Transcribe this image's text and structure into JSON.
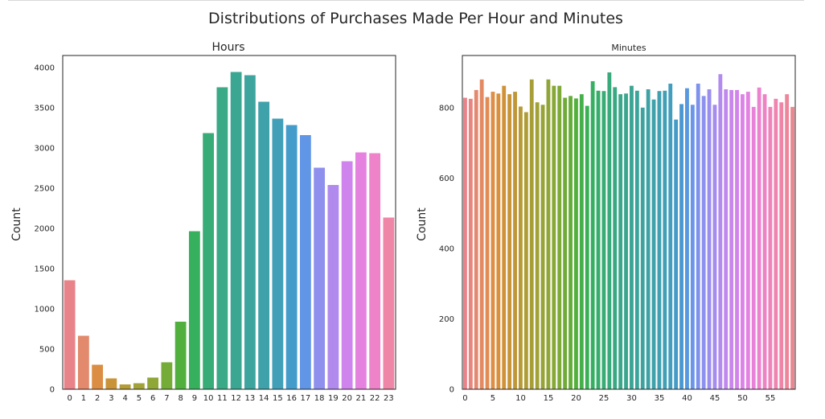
{
  "figure": {
    "suptitle": "Distributions of Purchases Made Per Hour and Minutes"
  },
  "chart_data": [
    {
      "type": "bar",
      "title": "Hours",
      "xlabel": "",
      "ylabel": "Count",
      "ylim": [
        0,
        4150
      ],
      "yticks": [
        0,
        500,
        1000,
        1500,
        2000,
        2500,
        3000,
        3500,
        4000
      ],
      "grid": false,
      "categories": [
        "0",
        "1",
        "2",
        "3",
        "4",
        "5",
        "6",
        "7",
        "8",
        "9",
        "10",
        "11",
        "12",
        "13",
        "14",
        "15",
        "16",
        "17",
        "18",
        "19",
        "20",
        "21",
        "22",
        "23"
      ],
      "tick_labels": [
        "0",
        "1",
        "2",
        "3",
        "4",
        "5",
        "6",
        "7",
        "8",
        "9",
        "10",
        "11",
        "12",
        "13",
        "14",
        "15",
        "16",
        "17",
        "18",
        "19",
        "20",
        "21",
        "22",
        "23"
      ],
      "values": [
        1355,
        665,
        305,
        135,
        60,
        75,
        145,
        335,
        840,
        1965,
        3185,
        3755,
        3945,
        3905,
        3575,
        3365,
        3285,
        3160,
        2755,
        2540,
        2835,
        2945,
        2935,
        2135
      ],
      "colors": [
        "#e8838a",
        "#e28a6b",
        "#dc8d44",
        "#c99438",
        "#b49c37",
        "#a1a237",
        "#8ea737",
        "#74ac37",
        "#51b03d",
        "#36b05d",
        "#38ac76",
        "#3aa986",
        "#3ba692",
        "#3ea49e",
        "#3fa2aa",
        "#41a0b8",
        "#449ccb",
        "#6196e6",
        "#8f90ee",
        "#b18aee",
        "#ce84ec",
        "#e582df",
        "#ef83c9",
        "#ef86a8"
      ]
    },
    {
      "type": "bar",
      "title": "Minutes",
      "xlabel": "",
      "ylabel": "Count",
      "ylim": [
        0,
        948
      ],
      "yticks": [
        0,
        200,
        400,
        600,
        800
      ],
      "grid": false,
      "categories": [
        "0",
        "1",
        "2",
        "3",
        "4",
        "5",
        "6",
        "7",
        "8",
        "9",
        "10",
        "11",
        "12",
        "13",
        "14",
        "15",
        "16",
        "17",
        "18",
        "19",
        "20",
        "21",
        "22",
        "23",
        "24",
        "25",
        "26",
        "27",
        "28",
        "29",
        "30",
        "31",
        "32",
        "33",
        "34",
        "35",
        "36",
        "37",
        "38",
        "39",
        "40",
        "41",
        "42",
        "43",
        "44",
        "45",
        "46",
        "47",
        "48",
        "49",
        "50",
        "51",
        "52",
        "53",
        "54",
        "55",
        "56",
        "57",
        "58",
        "59"
      ],
      "tick_labels": [
        "0",
        "5",
        "10",
        "15",
        "20",
        "25",
        "30",
        "35",
        "40",
        "45",
        "50",
        "55"
      ],
      "values": [
        828,
        825,
        850,
        880,
        830,
        845,
        840,
        862,
        838,
        845,
        803,
        787,
        880,
        815,
        808,
        880,
        862,
        862,
        828,
        833,
        826,
        838,
        805,
        875,
        848,
        847,
        900,
        858,
        838,
        840,
        862,
        848,
        800,
        852,
        823,
        847,
        848,
        868,
        766,
        810,
        855,
        808,
        868,
        833,
        852,
        808,
        895,
        852,
        850,
        850,
        838,
        845,
        802,
        857,
        838,
        802,
        825,
        815,
        838,
        802
      ],
      "colors": [
        "#e8838a",
        "#e7857e",
        "#e58871",
        "#e38a63",
        "#e18c55",
        "#de8e46",
        "#d8903b",
        "#d09238",
        "#c79438",
        "#bf9737",
        "#b79a37",
        "#af9c37",
        "#a89e37",
        "#a0a137",
        "#98a337",
        "#90a537",
        "#87a737",
        "#7da937",
        "#70ab37",
        "#62ad38",
        "#52b03c",
        "#45b04a",
        "#3bb057",
        "#37af63",
        "#37ad6c",
        "#38ac74",
        "#39aa7b",
        "#39a982",
        "#3aa888",
        "#3ba68e",
        "#3ba594",
        "#3ca49a",
        "#3ea39f",
        "#3ea2a5",
        "#3fa1aa",
        "#40a0b0",
        "#419fb6",
        "#439dbd",
        "#459bc6",
        "#4a99d1",
        "#5798df",
        "#6a95e8",
        "#7d92ec",
        "#8c90ee",
        "#9a8eee",
        "#a78cee",
        "#b38aee",
        "#be88ed",
        "#c986ec",
        "#d384eb",
        "#dc83e7",
        "#e382e1",
        "#e882d8",
        "#ec83ce",
        "#ee83c4",
        "#ef84ba",
        "#ef84b0",
        "#ef85a6",
        "#ee869b",
        "#ec8790"
      ]
    }
  ]
}
